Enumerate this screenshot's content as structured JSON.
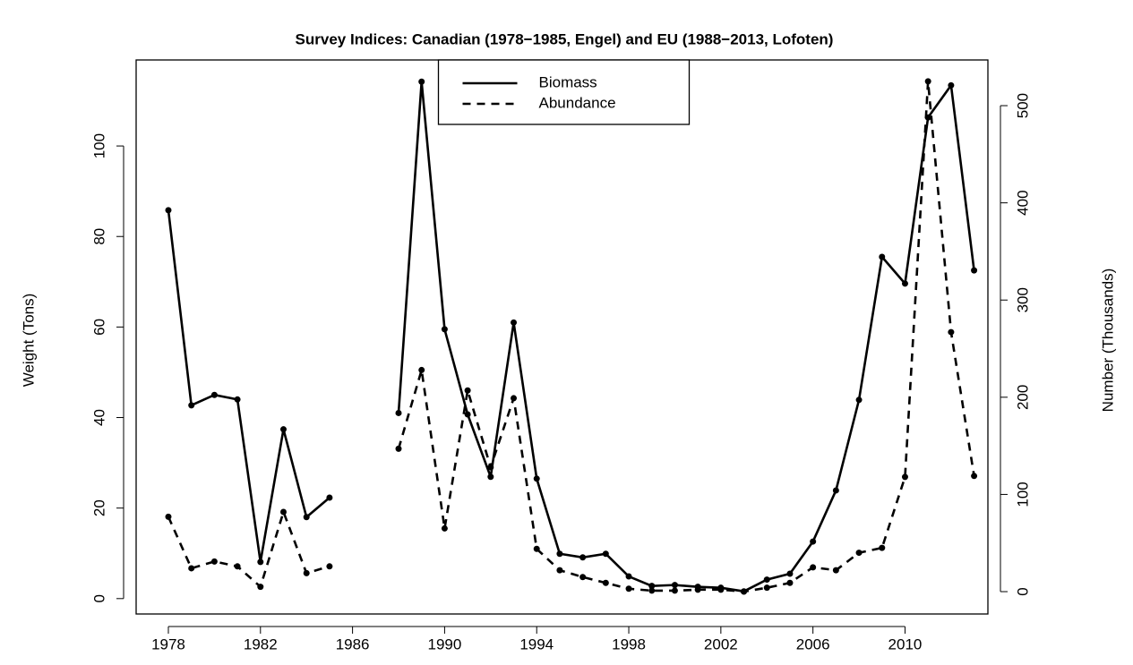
{
  "chart_data": {
    "type": "line",
    "title": "Survey Indices: Canadian (1978−1985, Engel) and EU (1988−2013, Lofoten)",
    "y_label": "Weight (Tons)",
    "y2_label": "Number (Thousands)",
    "x": [
      1978,
      1979,
      1980,
      1981,
      1982,
      1983,
      1984,
      1985,
      1986,
      1987,
      1988,
      1989,
      1990,
      1991,
      1992,
      1993,
      1994,
      1995,
      1996,
      1997,
      1998,
      1999,
      2000,
      2001,
      2002,
      2003,
      2004,
      2005,
      2006,
      2007,
      2008,
      2009,
      2010,
      2011,
      2012,
      2013
    ],
    "series": [
      {
        "name": "Biomass",
        "color": "#000000",
        "line_style": "solid",
        "values": [
          85.8,
          42.7,
          45,
          44,
          8.1,
          37.4,
          18,
          22.3,
          null,
          null,
          41,
          114.2,
          59.5,
          40.7,
          26.9,
          61,
          26.5,
          9.9,
          9.1,
          9.9,
          4.9,
          2.8,
          3,
          2.6,
          2.4,
          1.6,
          4.2,
          5.5,
          12.6,
          23.9,
          43.9,
          75.5,
          69.6,
          106.3,
          113.4,
          72.5
        ]
      },
      {
        "name": "Abundance",
        "color": "#000000",
        "line_style": "dashed",
        "axis": "y2",
        "values": [
          77,
          24,
          31,
          26,
          5,
          82,
          19,
          26,
          null,
          null,
          147,
          228,
          65,
          207,
          128,
          199,
          44,
          22,
          15,
          9,
          3,
          1,
          1,
          2,
          2,
          0,
          4,
          9,
          25,
          22,
          40,
          45,
          118,
          525,
          267,
          119
        ]
      }
    ],
    "xlim": [
      1976.6,
      2013.6
    ],
    "xticks": [
      1978,
      1982,
      1986,
      1990,
      1994,
      1998,
      2002,
      2006,
      2010
    ],
    "ylim": [
      -3.4,
      119
    ],
    "yticks": [
      0,
      20,
      40,
      60,
      80,
      100
    ],
    "y2lim": [
      -23,
      547
    ],
    "y2ticks": [
      0,
      100,
      200,
      300,
      400,
      500
    ],
    "legend": "top"
  }
}
